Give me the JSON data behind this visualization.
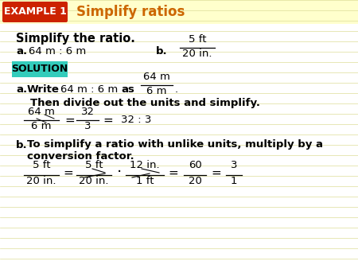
{
  "bg_color": "#fffff5",
  "header_bg": "#ffffcc",
  "example_box_color": "#cc2200",
  "example_box_text": "EXAMPLE 1",
  "example_box_text_color": "#ffffff",
  "title_text": "Simplify ratios",
  "title_color": "#cc6600",
  "solution_bg": "#33ccbb",
  "solution_text": "SOLUTION",
  "solution_text_color": "#000000",
  "line_color": "#dddd99",
  "text_color": "#000000",
  "white_bg": "#ffffff"
}
